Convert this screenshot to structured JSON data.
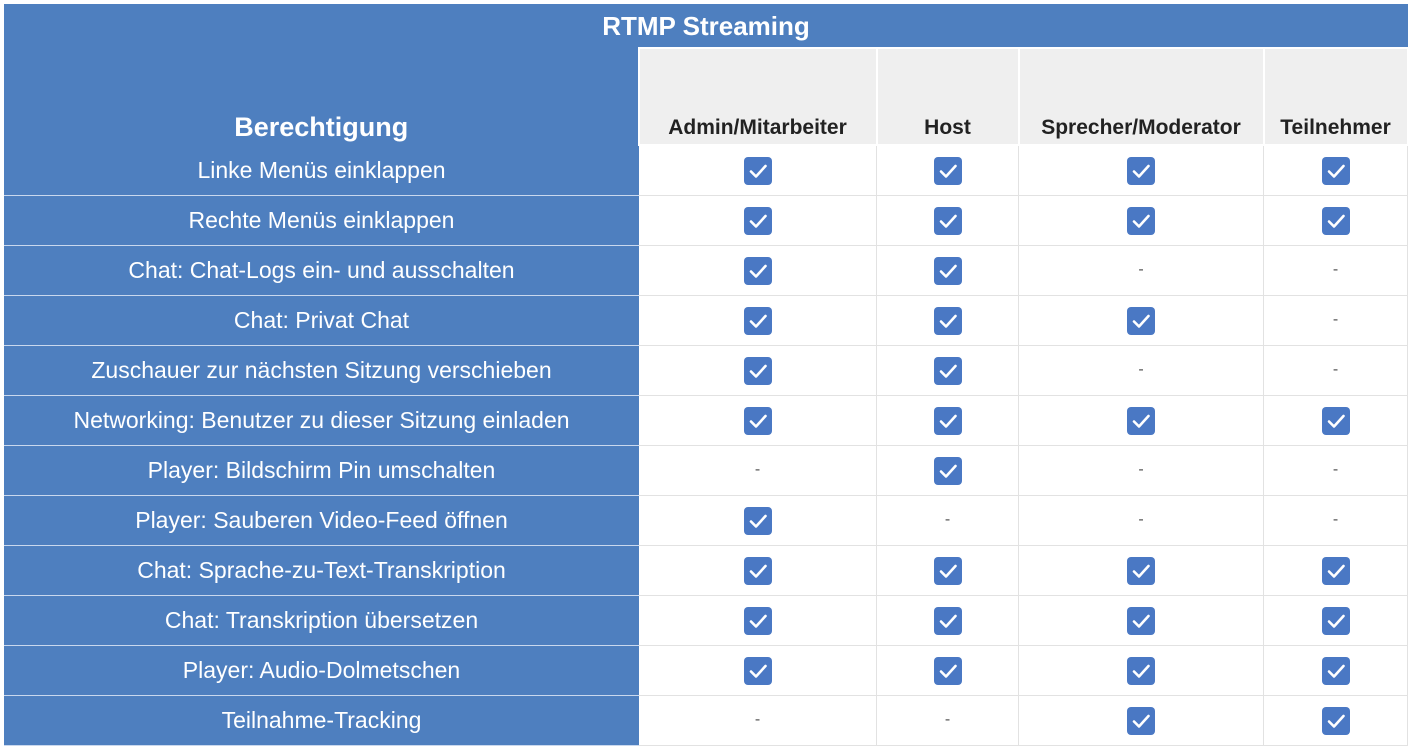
{
  "title": "RTMP Streaming",
  "header": {
    "permission_label": "Berechtigung",
    "roles": [
      "Admin/Mitarbeiter",
      "Host",
      "Sprecher/Moderator",
      "Teilnehmer"
    ]
  },
  "empty_symbol": "-",
  "rows": [
    {
      "label": "Linke Menüs einklappen",
      "values": [
        true,
        true,
        true,
        true
      ]
    },
    {
      "label": "Rechte Menüs einklappen",
      "values": [
        true,
        true,
        true,
        true
      ]
    },
    {
      "label": "Chat: Chat-Logs ein- und ausschalten",
      "values": [
        true,
        true,
        false,
        false
      ]
    },
    {
      "label": "Chat: Privat Chat",
      "values": [
        true,
        true,
        true,
        false
      ]
    },
    {
      "label": "Zuschauer zur nächsten Sitzung verschieben",
      "values": [
        true,
        true,
        false,
        false
      ]
    },
    {
      "label": "Networking: Benutzer zu dieser Sitzung einladen",
      "values": [
        true,
        true,
        true,
        true
      ]
    },
    {
      "label": "Player: Bildschirm Pin umschalten",
      "values": [
        false,
        true,
        false,
        false
      ]
    },
    {
      "label": "Player: Sauberen Video-Feed öffnen",
      "values": [
        true,
        false,
        false,
        false
      ]
    },
    {
      "label": "Chat: Sprache-zu-Text-Transkription",
      "values": [
        true,
        true,
        true,
        true
      ]
    },
    {
      "label": "Chat: Transkription übersetzen",
      "values": [
        true,
        true,
        true,
        true
      ]
    },
    {
      "label": "Player: Audio-Dolmetschen",
      "values": [
        true,
        true,
        true,
        true
      ]
    },
    {
      "label": "Teilnahme-Tracking",
      "values": [
        false,
        false,
        true,
        true
      ]
    }
  ],
  "colors": {
    "header_blue": "#4e7fbf",
    "checkbox_blue": "#4a78c4",
    "role_header_bg": "#efefef"
  },
  "icons": {
    "checked": "checkbox-checked-icon"
  }
}
